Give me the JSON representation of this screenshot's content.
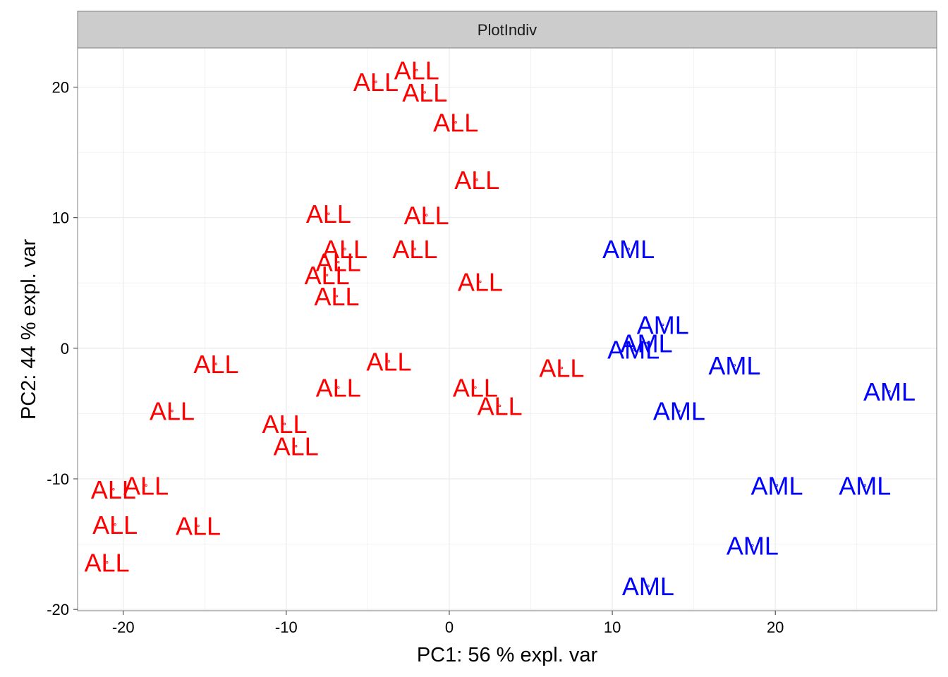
{
  "chart_data": {
    "type": "scatter",
    "title": "",
    "facet_label": "PlotIndiv",
    "xlabel": "PC1: 56 % expl. var",
    "ylabel": "PC2: 44 % expl. var",
    "xlim": [
      -22.8,
      29.9
    ],
    "ylim": [
      -20.1,
      23.0
    ],
    "x_ticks": [
      -20,
      -10,
      0,
      10,
      20
    ],
    "y_ticks": [
      -20,
      -10,
      0,
      10,
      20
    ],
    "x_tick_labels": [
      "-20",
      "-10",
      "0",
      "10",
      "20"
    ],
    "y_tick_labels": [
      "-20",
      "-10",
      "0",
      "10",
      "20"
    ],
    "grid": true,
    "legend": "none",
    "series": [
      {
        "label": "ALL",
        "color": "#ff0000",
        "points": [
          [
            -2.0,
            21.3
          ],
          [
            -4.5,
            20.4
          ],
          [
            -1.5,
            19.6
          ],
          [
            0.4,
            17.3
          ],
          [
            1.7,
            12.9
          ],
          [
            -7.4,
            10.3
          ],
          [
            -1.4,
            10.2
          ],
          [
            -6.4,
            7.6
          ],
          [
            -2.1,
            7.6
          ],
          [
            -6.8,
            6.6
          ],
          [
            -7.5,
            5.6
          ],
          [
            -6.9,
            4.0
          ],
          [
            1.9,
            5.1
          ],
          [
            -14.3,
            -1.2
          ],
          [
            -3.7,
            -1.0
          ],
          [
            6.9,
            -1.5
          ],
          [
            -6.8,
            -3.0
          ],
          [
            1.6,
            -3.0
          ],
          [
            3.1,
            -4.4
          ],
          [
            -17.0,
            -4.8
          ],
          [
            -10.1,
            -5.8
          ],
          [
            -9.4,
            -7.5
          ],
          [
            -20.6,
            -10.8
          ],
          [
            -18.6,
            -10.5
          ],
          [
            -20.5,
            -13.5
          ],
          [
            -15.4,
            -13.6
          ],
          [
            -21.0,
            -16.4
          ]
        ]
      },
      {
        "label": "AML",
        "color": "#0000ff",
        "points": [
          [
            11.0,
            7.6
          ],
          [
            13.1,
            1.8
          ],
          [
            12.1,
            0.4
          ],
          [
            11.3,
            -0.1
          ],
          [
            17.5,
            -1.3
          ],
          [
            27.0,
            -3.3
          ],
          [
            14.1,
            -4.8
          ],
          [
            20.1,
            -10.5
          ],
          [
            25.5,
            -10.5
          ],
          [
            18.6,
            -15.1
          ],
          [
            12.2,
            -18.2
          ]
        ]
      }
    ]
  }
}
